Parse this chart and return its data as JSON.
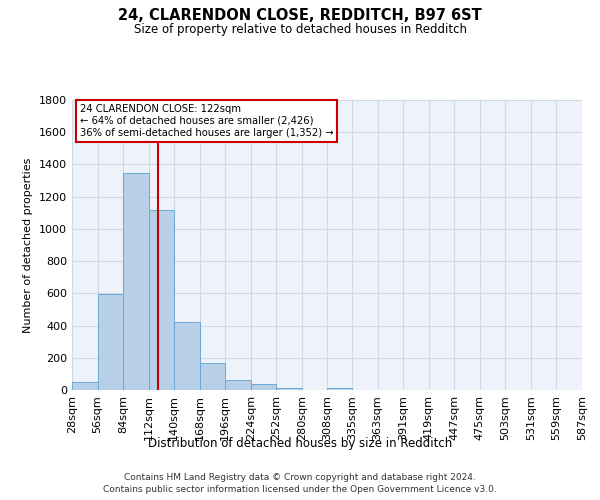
{
  "title_line1": "24, CLARENDON CLOSE, REDDITCH, B97 6ST",
  "title_line2": "Size of property relative to detached houses in Redditch",
  "xlabel": "Distribution of detached houses by size in Redditch",
  "ylabel": "Number of detached properties",
  "footer_line1": "Contains HM Land Registry data © Crown copyright and database right 2024.",
  "footer_line2": "Contains public sector information licensed under the Open Government Licence v3.0.",
  "annotation_title": "24 CLARENDON CLOSE: 122sqm",
  "annotation_line1": "← 64% of detached houses are smaller (2,426)",
  "annotation_line2": "36% of semi-detached houses are larger (1,352) →",
  "property_size": 122,
  "bin_edges": [
    28,
    56,
    84,
    112,
    140,
    168,
    196,
    224,
    252,
    280,
    308,
    335,
    363,
    391,
    419,
    447,
    475,
    503,
    531,
    559,
    587
  ],
  "bar_heights": [
    50,
    595,
    1350,
    1115,
    425,
    170,
    60,
    38,
    15,
    0,
    15,
    0,
    0,
    0,
    0,
    0,
    0,
    0,
    0,
    0
  ],
  "bar_color": "#b8cfe8",
  "bar_edge_color": "#6aaad4",
  "vline_color": "#cc0000",
  "vline_x": 122,
  "annotation_box_color": "#cc0000",
  "ylim": [
    0,
    1800
  ],
  "yticks": [
    0,
    200,
    400,
    600,
    800,
    1000,
    1200,
    1400,
    1600,
    1800
  ],
  "grid_color": "#d0d8e8",
  "background_color": "#eef2fa",
  "tick_labels": [
    "28sqm",
    "56sqm",
    "84sqm",
    "112sqm",
    "140sqm",
    "168sqm",
    "196sqm",
    "224sqm",
    "252sqm",
    "280sqm",
    "308sqm",
    "335sqm",
    "363sqm",
    "391sqm",
    "419sqm",
    "447sqm",
    "475sqm",
    "503sqm",
    "531sqm",
    "559sqm",
    "587sqm"
  ]
}
